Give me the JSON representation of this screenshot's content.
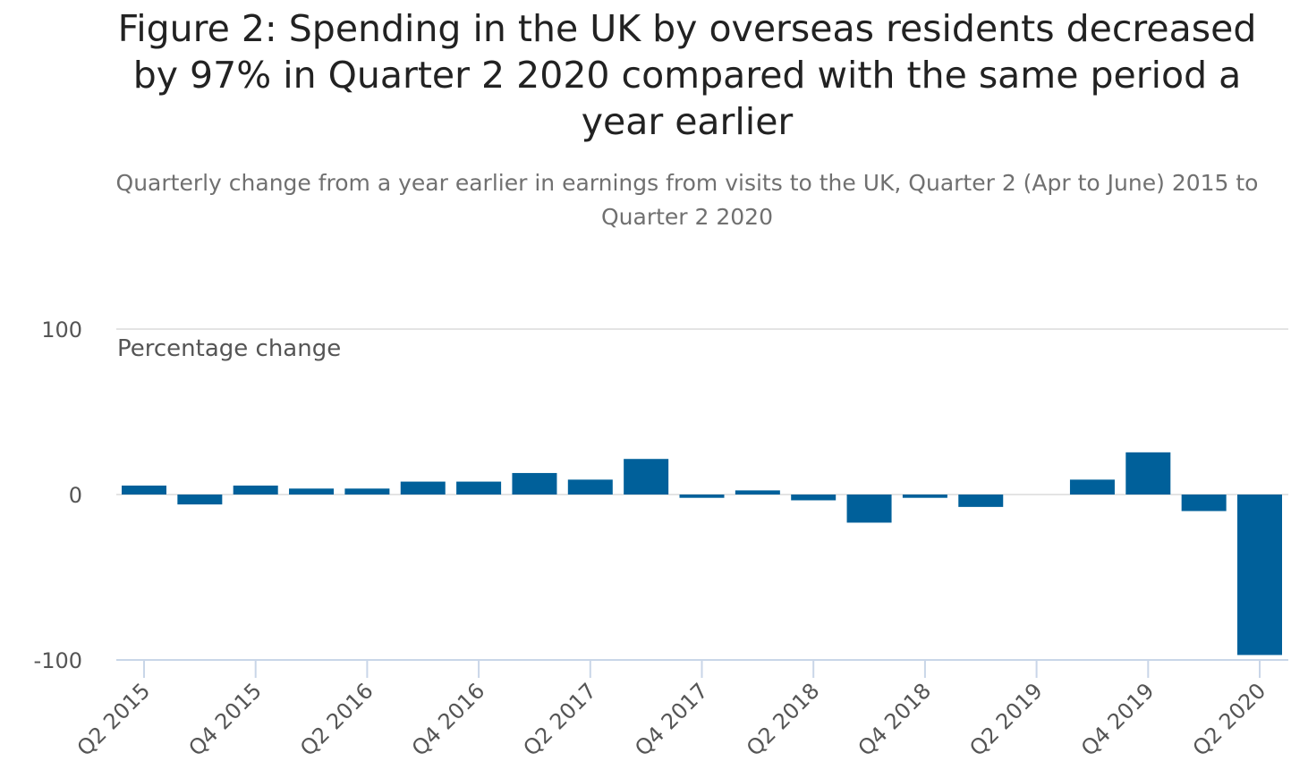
{
  "chart_data": {
    "type": "bar",
    "title": "Figure 2: Spending in the UK by overseas residents decreased by 97% in Quarter 2 2020 compared with the same period a year earlier",
    "subtitle": "Quarterly change from a year earlier in earnings from visits to the UK, Quarter 2 (Apr to June) 2015 to Quarter 2 2020",
    "ylabel": "Percentage change",
    "xlabel": "",
    "ylim": [
      -100,
      100
    ],
    "yticks": [
      "100",
      "0",
      "-100"
    ],
    "ytick_values": [
      100,
      0,
      -100
    ],
    "grid": true,
    "bar_color": "#00609a",
    "categories": [
      "Q2 2015",
      "Q3 2015",
      "Q4 2015",
      "Q1 2016",
      "Q2 2016",
      "Q3 2016",
      "Q4 2016",
      "Q1 2017",
      "Q2 2017",
      "Q3 2017",
      "Q4 2017",
      "Q1 2018",
      "Q2 2018",
      "Q3 2018",
      "Q4 2018",
      "Q1 2019",
      "Q2 2019",
      "Q3 2019",
      "Q4 2019",
      "Q1 2020",
      "Q2 2020"
    ],
    "xtick_labels": [
      "Q2 2015",
      "Q4 2015",
      "Q2 2016",
      "Q4 2016",
      "Q2 2017",
      "Q4 2017",
      "Q2 2018",
      "Q4 2018",
      "Q2 2019",
      "Q4 2019",
      "Q2 2020"
    ],
    "values": [
      5.4,
      -6,
      5.4,
      3.6,
      3.6,
      7.8,
      7.8,
      13,
      9,
      21.5,
      -2,
      2.5,
      -3.5,
      -17,
      -2,
      -7.5,
      0,
      9,
      25.5,
      -10,
      -97
    ]
  }
}
